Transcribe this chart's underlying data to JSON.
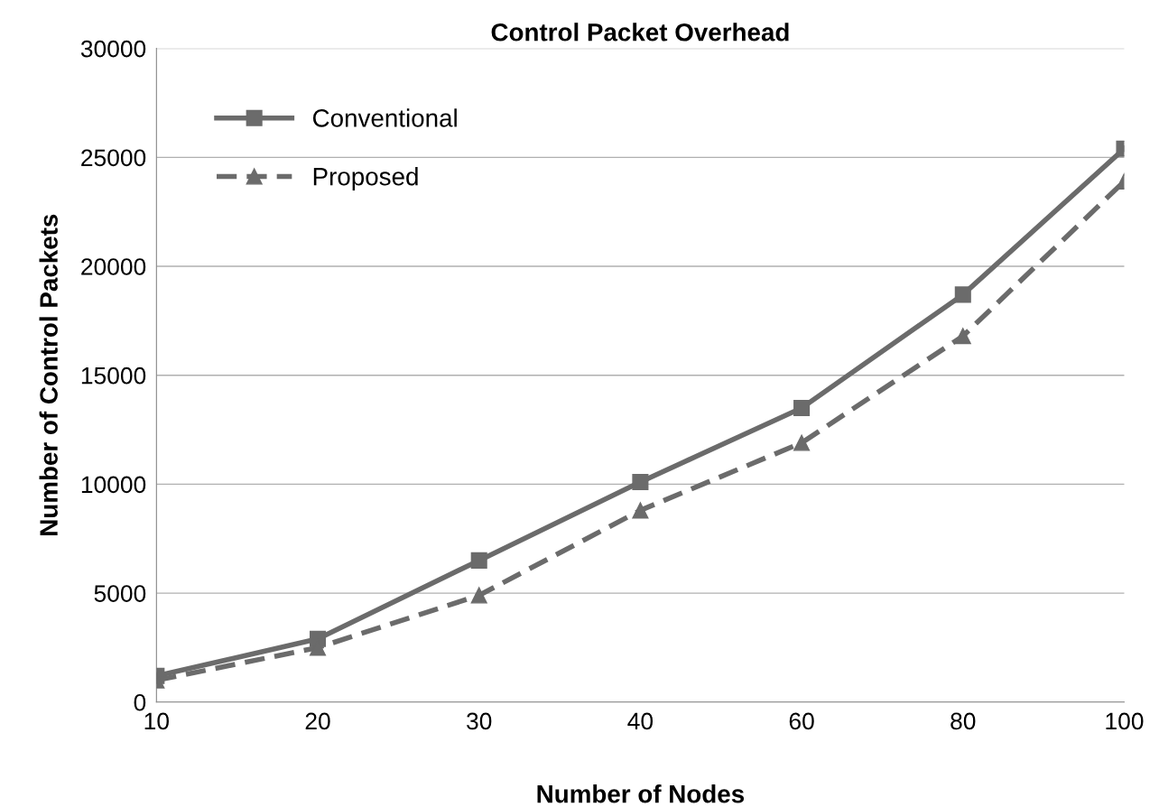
{
  "chart_data": {
    "type": "line",
    "title": "Control Packet Overhead",
    "xlabel": "Number of Nodes",
    "ylabel": "Number of Control Packets",
    "categories": [
      "10",
      "20",
      "30",
      "40",
      "60",
      "80",
      "100"
    ],
    "series": [
      {
        "name": "Conventional",
        "color": "#6b6b6b",
        "marker": "square",
        "line_style": "solid",
        "values": [
          1200,
          2900,
          6500,
          10100,
          13500,
          18700,
          25400
        ]
      },
      {
        "name": "Proposed",
        "color": "#6b6b6b",
        "marker": "triangle",
        "line_style": "dashed",
        "values": [
          1000,
          2500,
          4900,
          8800,
          11900,
          16800,
          23900
        ]
      }
    ],
    "ylim": [
      0,
      30000
    ],
    "yticks": [
      0,
      5000,
      10000,
      15000,
      20000,
      25000,
      30000
    ],
    "grid": "y",
    "legend": "top left"
  }
}
